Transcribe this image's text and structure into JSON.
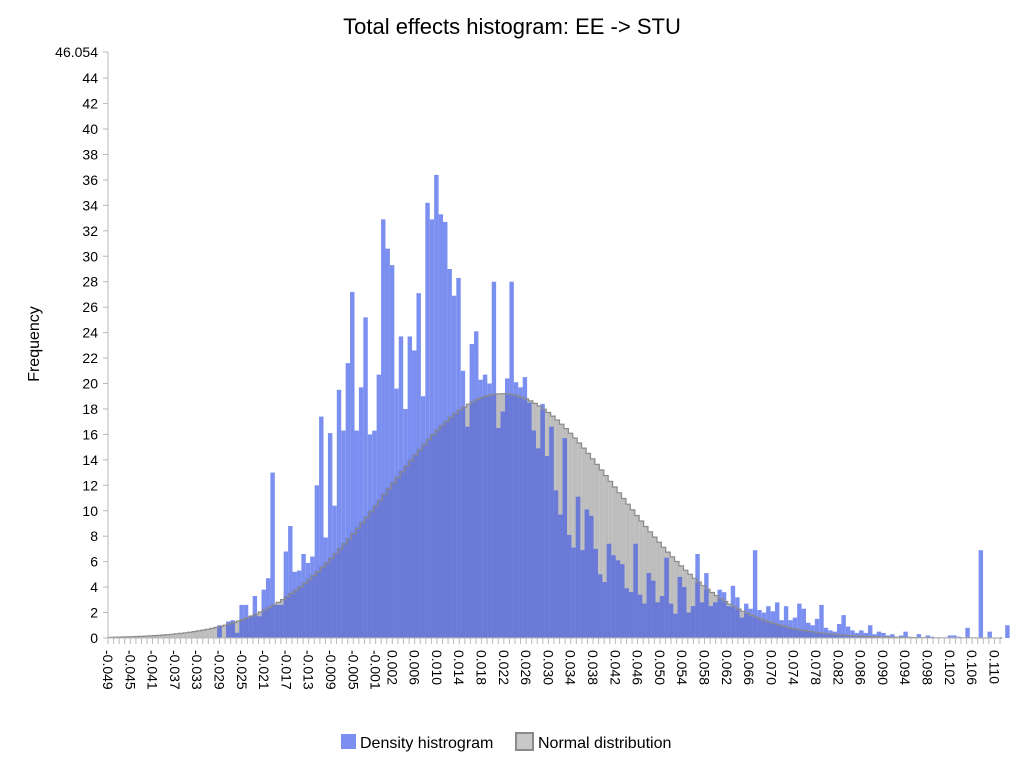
{
  "chart_data": {
    "type": "bar",
    "title": "Total effects histogram: EE -> STU",
    "xlabel": "",
    "ylabel": "Frequency",
    "ylim": [
      0,
      46.054
    ],
    "y_ticks": [
      "0",
      "2",
      "4",
      "6",
      "8",
      "10",
      "12",
      "14",
      "16",
      "18",
      "20",
      "22",
      "24",
      "26",
      "28",
      "30",
      "32",
      "34",
      "36",
      "38",
      "40",
      "42",
      "44",
      "46.054"
    ],
    "xlim": [
      -0.049,
      0.111
    ],
    "x_tick_labels": [
      "-0.049",
      "-0.045",
      "-0.041",
      "-0.037",
      "-0.033",
      "-0.029",
      "-0.025",
      "-0.021",
      "-0.017",
      "-0.013",
      "-0.009",
      "-0.005",
      "-0.001",
      "0.002",
      "0.006",
      "0.010",
      "0.014",
      "0.018",
      "0.022",
      "0.026",
      "0.030",
      "0.034",
      "0.038",
      "0.042",
      "0.046",
      "0.050",
      "0.054",
      "0.058",
      "0.062",
      "0.066",
      "0.070",
      "0.074",
      "0.078",
      "0.082",
      "0.086",
      "0.090",
      "0.094",
      "0.098",
      "0.102",
      "0.106",
      "0.110"
    ],
    "legend": [
      "Density histrogram",
      "Normal distribution"
    ],
    "legend_position": "bottom-center",
    "colors": {
      "histogram": "#7b8ff0",
      "normal": "#bdbdbd",
      "overlap": "#6a7ad6",
      "curve_line": "#8a8a8a"
    },
    "normal_curve": {
      "mean": 0.0214,
      "peak": 19.2,
      "sd": 0.0205,
      "x_start": -0.049,
      "x_end": 0.111
    },
    "bins": {
      "start": -0.0294,
      "width": 0.000794,
      "values": [
        1.0,
        0,
        1.3,
        1.4,
        0.4,
        2.6,
        2.6,
        1.7,
        3.3,
        1.7,
        3.8,
        4.7,
        13.0,
        2.6,
        2.6,
        6.8,
        8.8,
        5.2,
        5.3,
        6.6,
        5.9,
        6.4,
        12.0,
        17.4,
        7.9,
        16.1,
        10.4,
        19.5,
        16.3,
        21.6,
        27.2,
        16.3,
        19.7,
        25.2,
        16.0,
        16.3,
        20.7,
        32.9,
        30.6,
        29.3,
        19.6,
        23.7,
        18.0,
        23.7,
        22.6,
        27.1,
        19.0,
        34.2,
        32.9,
        36.4,
        33.3,
        32.7,
        29.0,
        26.9,
        28.3,
        21.0,
        16.6,
        23.1,
        24.1,
        20.3,
        20.7,
        20.0,
        28.0,
        16.5,
        17.8,
        20.4,
        28.0,
        20.1,
        19.7,
        20.5,
        18.5,
        16.3,
        14.9,
        18.4,
        14.3,
        16.6,
        11.6,
        9.7,
        15.7,
        8.1,
        7.1,
        11.1,
        6.9,
        10.1,
        9.6,
        7.0,
        5.0,
        4.4,
        7.4,
        6.5,
        6.1,
        5.8,
        3.9,
        3.6,
        7.4,
        3.4,
        2.7,
        5.1,
        4.5,
        2.8,
        3.3,
        6.3,
        2.7,
        1.9,
        4.8,
        4.0,
        2.0,
        2.5,
        6.6,
        2.8,
        5.1,
        2.5,
        2.8,
        3.8,
        3.6,
        2.5,
        4.1,
        3.2,
        1.6,
        2.7,
        2.3,
        6.9,
        2.2,
        2.0,
        2.5,
        2.1,
        2.8,
        1.4,
        2.5,
        1.4,
        1.6,
        2.7,
        2.3,
        1.2,
        1.0,
        1.5,
        2.6,
        0.8,
        0.6,
        0.5,
        1.1,
        1.8,
        0.9,
        0.6,
        0.4,
        0.6,
        0.4,
        1.0,
        0.3,
        0.5,
        0.4,
        0.2,
        0.3,
        0.1,
        0.2,
        0.5,
        0.1,
        0,
        0.3,
        0,
        0.2,
        0.1,
        0,
        0,
        0,
        0.2,
        0.2,
        0.1,
        0,
        0.8,
        0,
        0,
        6.9,
        0,
        0.5,
        0,
        0,
        0,
        1.0
      ]
    }
  }
}
